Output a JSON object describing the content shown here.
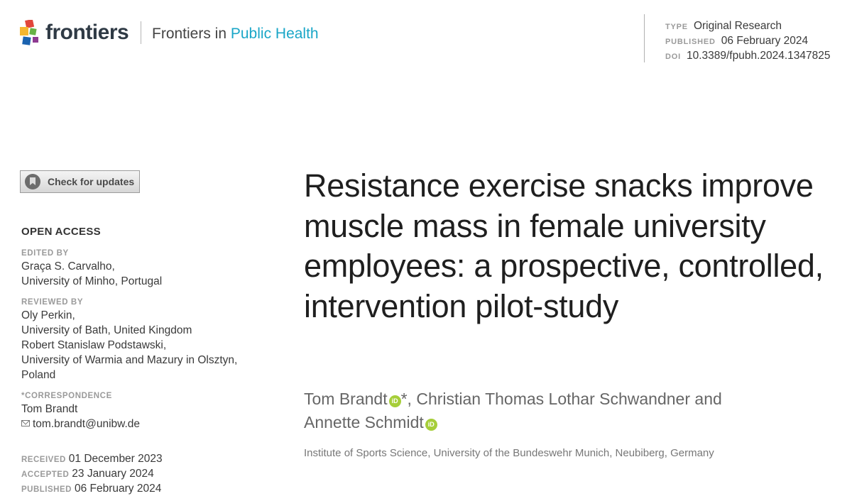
{
  "header": {
    "brand": "frontiers",
    "journal_prefix": "Frontiers in ",
    "journal_name": "Public Health",
    "colors": {
      "accent": "#1aa6c7",
      "logo_red": "#e2463a",
      "logo_yellow": "#f5b731",
      "logo_blue": "#1b63b0",
      "logo_green": "#67b346",
      "logo_purple": "#8e3a91"
    }
  },
  "meta": {
    "type_label": "TYPE",
    "type_value": "Original Research",
    "published_label": "PUBLISHED",
    "published_value": "06 February 2024",
    "doi_label": "DOI",
    "doi_value": "10.3389/fpubh.2024.1347825"
  },
  "updates": {
    "label": "Check for updates",
    "icon": "bookmark-icon"
  },
  "left": {
    "open_access": "OPEN ACCESS",
    "edited_by": {
      "heading": "EDITED BY",
      "lines": [
        "Graça S. Carvalho,",
        "University of Minho, Portugal"
      ]
    },
    "reviewed_by": {
      "heading": "REVIEWED BY",
      "lines": [
        "Oly Perkin,",
        "University of Bath, United Kingdom",
        "Robert Stanislaw Podstawski,",
        "University of Warmia and Mazury in Olsztyn,",
        "Poland"
      ]
    },
    "correspondence": {
      "heading": "*CORRESPONDENCE",
      "name": "Tom Brandt",
      "email": "tom.brandt@unibw.de"
    },
    "dates": {
      "received_label": "RECEIVED",
      "received_value": "01 December 2023",
      "accepted_label": "ACCEPTED",
      "accepted_value": "23 January 2024",
      "published_label": "PUBLISHED",
      "published_value": "06 February 2024"
    }
  },
  "main": {
    "title": "Resistance exercise snacks improve muscle mass in female university employees: a prospective, controlled, intervention pilot-study",
    "authors": {
      "first": "Tom Brandt",
      "first_suffix": "*, Christian Thomas Lothar Schwandner and",
      "last": "Annette Schmidt",
      "orcid_label": "iD"
    },
    "affiliation": "Institute of Sports Science, University of the Bundeswehr Munich, Neubiberg, Germany"
  }
}
